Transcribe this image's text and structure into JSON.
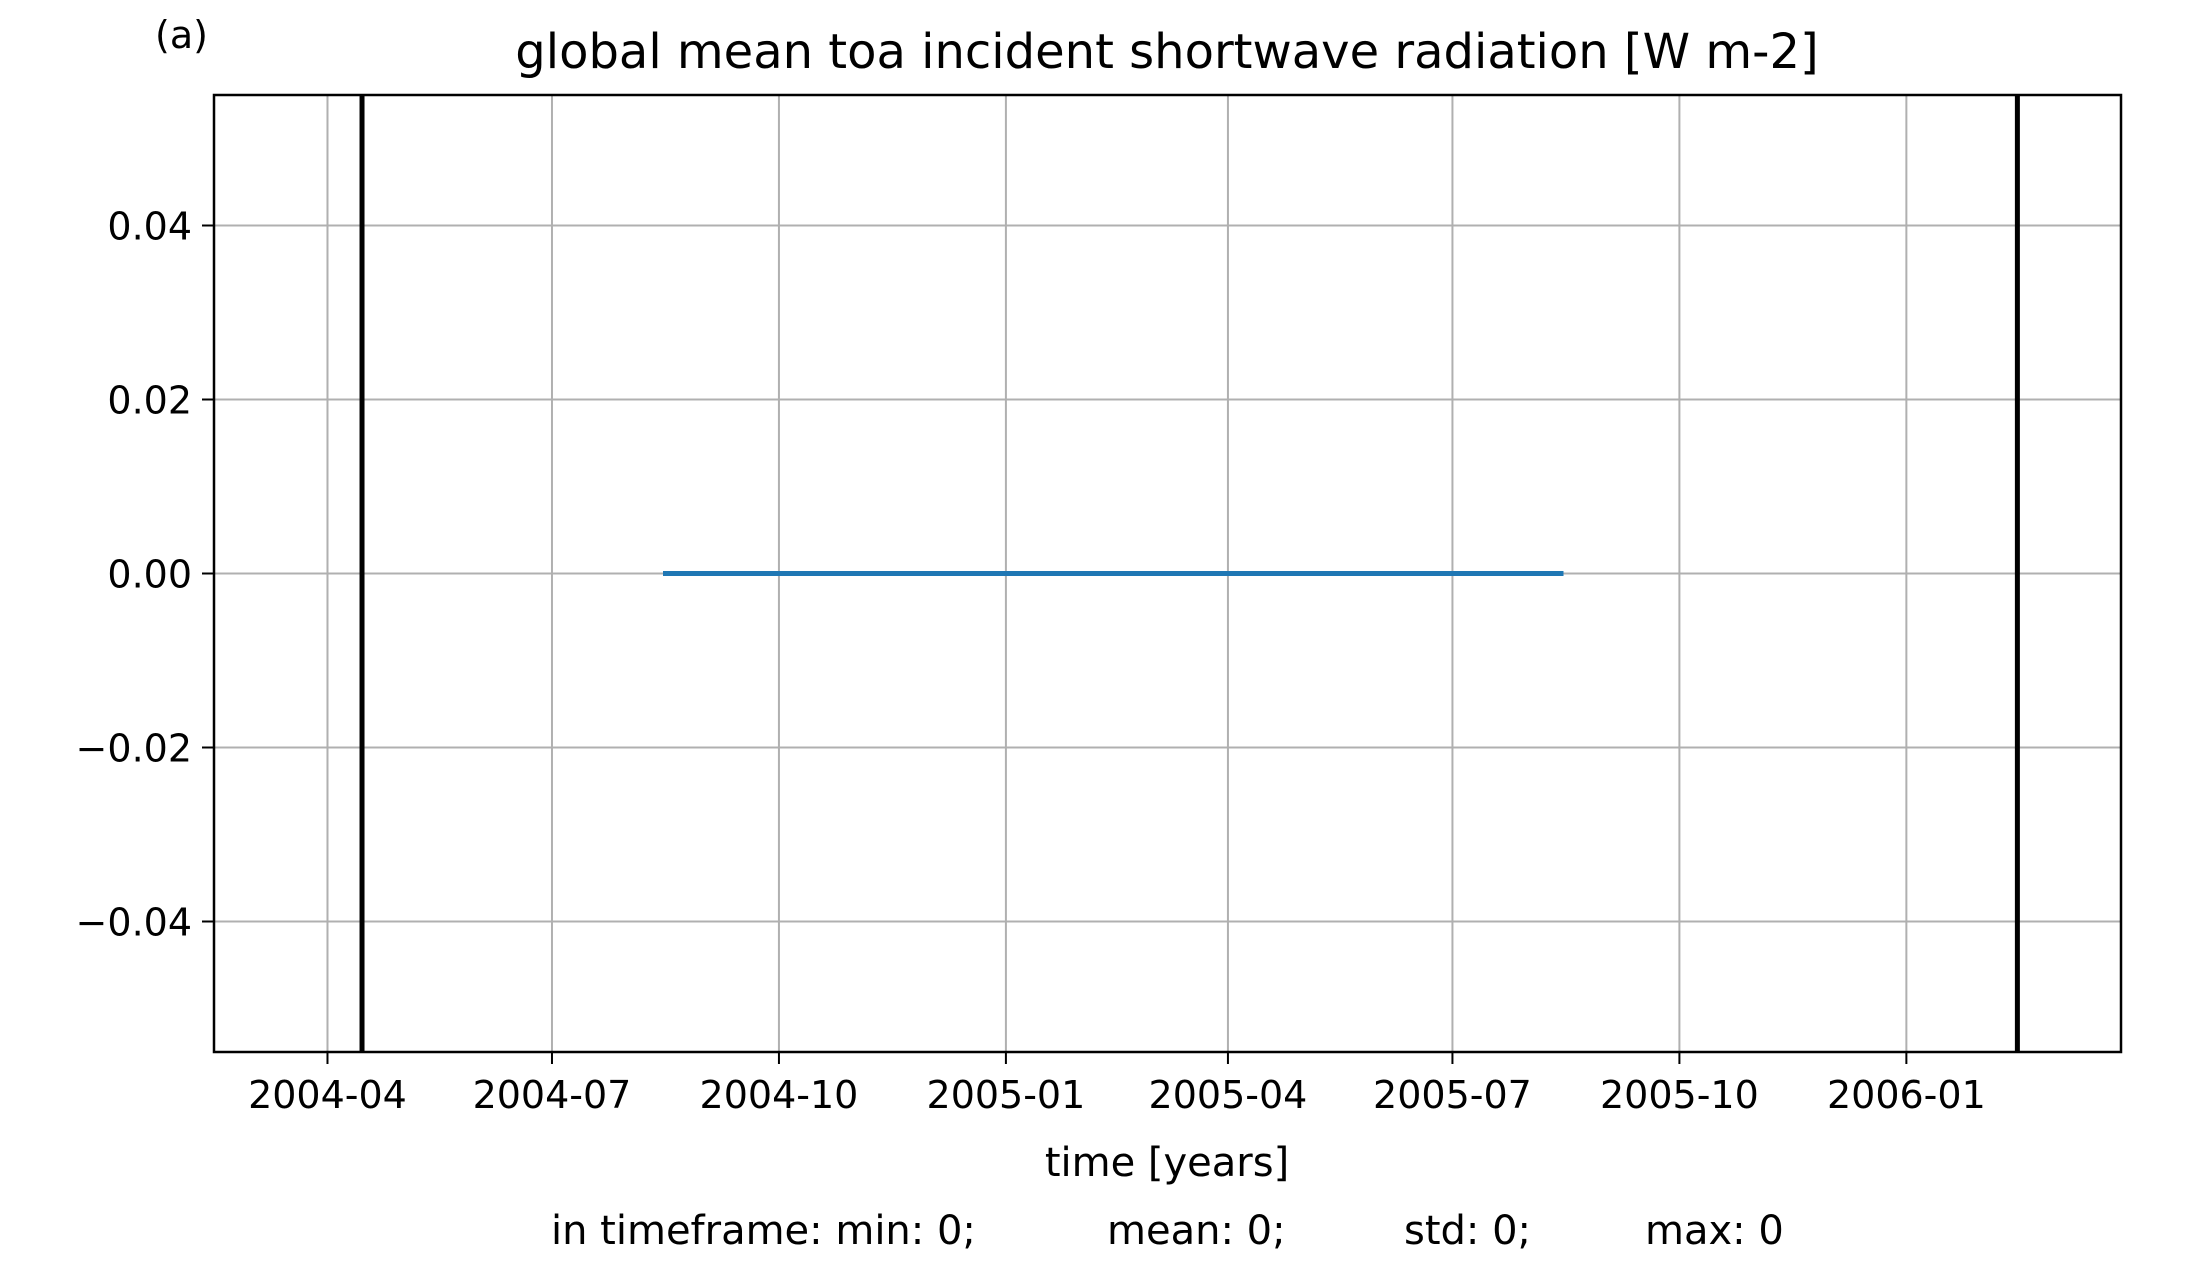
{
  "panel_label": "(a)",
  "chart_data": {
    "type": "line",
    "title": "global mean toa incident shortwave radiation [W m-2]",
    "xlabel": "time [years]",
    "ylabel": "",
    "x_axis_type": "date",
    "xlim": [
      "2004-02-15",
      "2006-03-29"
    ],
    "ylim": [
      -0.055,
      0.055
    ],
    "x_ticks": [
      "2004-04",
      "2004-07",
      "2004-10",
      "2005-01",
      "2005-04",
      "2005-07",
      "2005-10",
      "2006-01"
    ],
    "y_ticks": [
      0.04,
      0.02,
      0.0,
      -0.02,
      -0.04
    ],
    "y_tick_labels": [
      "0.04",
      "0.02",
      "0.00",
      "−0.02",
      "−0.04"
    ],
    "grid": true,
    "series": [
      {
        "color": "#1f77b4",
        "x": [
          "2004-08-15",
          "2004-09-15",
          "2004-10-15",
          "2004-11-15",
          "2004-12-15",
          "2005-01-15",
          "2005-02-15",
          "2005-03-15",
          "2005-04-15",
          "2005-05-15",
          "2005-06-15",
          "2005-07-15",
          "2005-08-15"
        ],
        "y": [
          0,
          0,
          0,
          0,
          0,
          0,
          0,
          0,
          0,
          0,
          0,
          0,
          0
        ]
      }
    ],
    "vertical_lines": [
      {
        "x": "2004-04-15",
        "color": "#000000"
      },
      {
        "x": "2006-02-15",
        "color": "#000000"
      }
    ]
  },
  "stats": {
    "min": "in timeframe: min: 0;",
    "mean": "mean: 0;",
    "std": "std: 0;",
    "max": "max: 0"
  }
}
